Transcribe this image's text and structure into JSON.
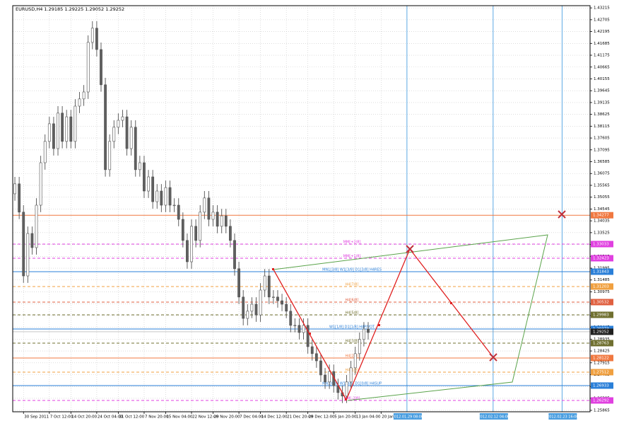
{
  "chart_data": {
    "type": "candlestick",
    "header": "EURUSD,H4  1.29185 1.29225 1.29052 1.29252",
    "open": [
      1.352,
      1.3563,
      1.3441,
      1.3166,
      1.3349,
      1.3288,
      1.3471,
      1.3654,
      1.3746,
      1.3822,
      1.3715,
      1.3868,
      1.3746,
      1.3852,
      1.3746,
      1.3898,
      1.3929,
      1.3959,
      1.4173,
      1.4234,
      1.4142,
      1.399,
      1.3624,
      1.3746,
      1.3807,
      1.3837,
      1.3852,
      1.3715,
      1.3807,
      1.3624,
      1.3654,
      1.3532,
      1.3593,
      1.3486,
      1.3532,
      1.3471,
      1.3547,
      1.3471,
      1.3471,
      1.341,
      1.3319,
      1.3227,
      1.338,
      1.3319,
      1.3441,
      1.3502,
      1.341,
      1.3441,
      1.338,
      1.3425,
      1.338,
      1.3319,
      1.3197,
      1.3075,
      1.2983,
      1.3014,
      1.3044,
      1.2998,
      1.3105,
      1.3166,
      1.3075,
      1.3075,
      1.3059,
      1.3044,
      1.3014,
      1.2953,
      1.2953,
      1.2922,
      1.2953,
      1.2861,
      1.2831,
      1.28,
      1.2739,
      1.2709,
      1.2754,
      1.2693,
      1.2663,
      1.2648,
      1.2709,
      1.277,
      1.2831,
      1.2892,
      1.2937
    ],
    "high": [
      1.3593,
      1.3593,
      1.3471,
      1.3379,
      1.3379,
      1.3501,
      1.3684,
      1.3776,
      1.3852,
      1.3852,
      1.3898,
      1.3898,
      1.3882,
      1.3882,
      1.3928,
      1.3959,
      1.3989,
      1.4203,
      1.4264,
      1.4264,
      1.4172,
      1.402,
      1.3776,
      1.3837,
      1.3867,
      1.3882,
      1.3882,
      1.3837,
      1.3837,
      1.3684,
      1.3684,
      1.3623,
      1.3623,
      1.3562,
      1.3562,
      1.3577,
      1.3577,
      1.3501,
      1.3501,
      1.344,
      1.3349,
      1.341,
      1.341,
      1.3471,
      1.3532,
      1.3532,
      1.3471,
      1.3471,
      1.3455,
      1.3455,
      1.341,
      1.3349,
      1.3227,
      1.3105,
      1.3044,
      1.3074,
      1.3074,
      1.3135,
      1.3196,
      1.3196,
      1.3105,
      1.3105,
      1.3089,
      1.3074,
      1.3044,
      1.2983,
      1.2983,
      1.2983,
      1.2983,
      1.2891,
      1.2861,
      1.283,
      1.2769,
      1.2784,
      1.2784,
      1.2723,
      1.2693,
      1.2739,
      1.28,
      1.2861,
      1.2922,
      1.2967,
      1.2967
    ],
    "low": [
      1.349,
      1.3411,
      1.3136,
      1.3136,
      1.3258,
      1.3258,
      1.3441,
      1.3624,
      1.3716,
      1.3685,
      1.3685,
      1.3716,
      1.3716,
      1.3716,
      1.3716,
      1.3868,
      1.3899,
      1.3929,
      1.4143,
      1.4112,
      1.396,
      1.3594,
      1.3594,
      1.3716,
      1.3777,
      1.3807,
      1.3685,
      1.3685,
      1.3594,
      1.3594,
      1.3502,
      1.3502,
      1.3456,
      1.3456,
      1.3441,
      1.3441,
      1.3441,
      1.3441,
      1.338,
      1.3289,
      1.3197,
      1.3197,
      1.3289,
      1.3289,
      1.3411,
      1.338,
      1.338,
      1.335,
      1.335,
      1.335,
      1.3289,
      1.3167,
      1.3045,
      1.2953,
      1.2953,
      1.2984,
      1.2968,
      1.2968,
      1.3075,
      1.3045,
      1.3045,
      1.3029,
      1.3014,
      1.2984,
      1.2923,
      1.2923,
      1.2892,
      1.2892,
      1.2831,
      1.2801,
      1.277,
      1.2709,
      1.2679,
      1.2679,
      1.2663,
      1.2633,
      1.2618,
      1.2618,
      1.2679,
      1.274,
      1.2801,
      1.2862,
      1.2892
    ],
    "close": [
      1.3563,
      1.3441,
      1.3166,
      1.3349,
      1.3288,
      1.3471,
      1.3654,
      1.3746,
      1.3822,
      1.3715,
      1.3868,
      1.3746,
      1.3852,
      1.3746,
      1.3898,
      1.3929,
      1.3959,
      1.4173,
      1.4234,
      1.4142,
      1.399,
      1.3624,
      1.3746,
      1.3807,
      1.3837,
      1.3852,
      1.3715,
      1.3807,
      1.3624,
      1.3654,
      1.3532,
      1.3593,
      1.3486,
      1.3532,
      1.3471,
      1.3547,
      1.3471,
      1.3471,
      1.341,
      1.3319,
      1.3227,
      1.338,
      1.3319,
      1.3441,
      1.3502,
      1.341,
      1.3441,
      1.338,
      1.3425,
      1.338,
      1.3319,
      1.3197,
      1.3075,
      1.2983,
      1.3014,
      1.3044,
      1.2998,
      1.3105,
      1.3166,
      1.3075,
      1.3075,
      1.3059,
      1.3044,
      1.3014,
      1.2953,
      1.2953,
      1.2922,
      1.2953,
      1.2861,
      1.2831,
      1.28,
      1.2739,
      1.2709,
      1.2754,
      1.2693,
      1.2663,
      1.2648,
      1.2709,
      1.277,
      1.2831,
      1.2892,
      1.2937,
      1.2922
    ],
    "up_color": "#ffffff",
    "down_color": "#606060",
    "wick_color": "#505050",
    "xlim": [
      -0.5,
      133.5
    ],
    "xticks": [
      {
        "value": 2,
        "label": "30 Sep 2011"
      },
      {
        "value": 8,
        "label": "7 Oct 12:00"
      },
      {
        "value": 13,
        "label": "14 Oct 20:00"
      },
      {
        "value": 19,
        "label": "24 Oct 04:00"
      },
      {
        "value": 24,
        "label": "31 Oct 12:00"
      },
      {
        "value": 30,
        "label": "7 Nov 20:00"
      },
      {
        "value": 35,
        "label": "15 Nov 04:00"
      },
      {
        "value": 41,
        "label": "22 Nov 12:00"
      },
      {
        "value": 46,
        "label": "29 Nov 20:00"
      },
      {
        "value": 52,
        "label": "7 Dec 04:00"
      },
      {
        "value": 57,
        "label": "14 Dec 12:00"
      },
      {
        "value": 63,
        "label": "21 Dec 20:00"
      },
      {
        "value": 68,
        "label": "29 Dec 12:00"
      },
      {
        "value": 74,
        "label": "5 Jan 20:00"
      },
      {
        "value": 79,
        "label": "13 Jan 04:00"
      },
      {
        "value": 85,
        "label": "20 Jan 12:00"
      }
    ],
    "highlight_ticks": [
      {
        "value": 91,
        "label": "2012.01.29 08:00"
      },
      {
        "value": 111,
        "label": "2012.02.12 04:00"
      },
      {
        "value": 127,
        "label": "2012.02.23 16:00"
      }
    ],
    "highlight_color": "#4a9ee0",
    "ylim": [
      1.25804,
      1.43311
    ],
    "yticks": [
      1.43215,
      1.42705,
      1.42195,
      1.41685,
      1.41175,
      1.40665,
      1.40155,
      1.39645,
      1.39135,
      1.38625,
      1.38115,
      1.37605,
      1.37095,
      1.36585,
      1.36075,
      1.35565,
      1.35055,
      1.34545,
      1.34035,
      1.33525,
      1.33015,
      1.32505,
      1.31995,
      1.31485,
      1.30975,
      1.30465,
      1.29955,
      1.29445,
      1.28935,
      1.28425,
      1.27915,
      1.27405,
      1.26895,
      1.26385,
      1.25865
    ],
    "grid": true,
    "levels": [
      {
        "value": 1.34277,
        "color": "#f07840",
        "style": "solid"
      },
      {
        "value": 1.33033,
        "name": "MM[+2/8]",
        "color": "#e040e0",
        "style": "dashed"
      },
      {
        "value": 1.32423,
        "name": "MM[+1/8]",
        "color": "#e040e0",
        "style": "dashed"
      },
      {
        "value": 1.31843,
        "name": "MN1[3/8] W1[3/8] D1[3/8] H4RES",
        "color": "#2a7fd8",
        "style": "solid"
      },
      {
        "value": 1.31203,
        "name": "H4[7/8]",
        "color": "#f0a040",
        "style": "dashed"
      },
      {
        "value": 1.30532,
        "name": "H4[6/8]",
        "color": "#e06040",
        "style": "dashed"
      },
      {
        "value": 1.29983,
        "name": "H4[5/8]",
        "color": "#707030",
        "style": "dashed"
      },
      {
        "value": 1.29373,
        "name": "W1[1/8] D1[1/8] H4PIVOT",
        "color": "#2a7fd8",
        "style": "solid"
      },
      {
        "value": 1.28763,
        "name": "H4[3/8]",
        "color": "#707030",
        "style": "dashed"
      },
      {
        "value": 1.28122,
        "name": "H4[2/8]",
        "color": "#f07840",
        "style": "solid"
      },
      {
        "value": 1.27512,
        "name": "H4[1/8]",
        "color": "#f0a040",
        "style": "dashed"
      },
      {
        "value": 1.26933,
        "name": "MN1[0/8] W1[0/8] D1[0/8] H4SUP",
        "color": "#2a7fd8",
        "style": "solid"
      },
      {
        "value": 1.26292,
        "name": "MM[-2/8]",
        "color": "#e040e0",
        "style": "dashed"
      }
    ],
    "bid": 1.29252,
    "bid_color": "#202020"
  }
}
